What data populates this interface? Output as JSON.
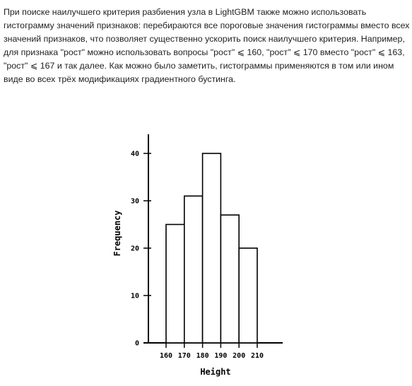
{
  "paragraph": {
    "text": "При поиске наилучшего критерия разбиения узла в LightGBM также можно использовать гистограмму значений признаков: перебираются все пороговые значения гистограммы вместо всех значений признаков, что позволяет существенно ускорить поиск наилучшего критерия. Например, для признака \"рост\" можно использовать вопросы \"рост\" ⩽ 160, \"рост\" ⩽ 170 вместо \"рост\" ⩽ 163, \"рост\" ⩽ 167 и так далее. Как можно было заметить, гистограммы применяются в том или ином виде во всех трёх модификациях градиентного бустинга."
  },
  "chart_data": {
    "type": "bar",
    "bins": [
      {
        "from": 160,
        "to": 170,
        "value": 25
      },
      {
        "from": 170,
        "to": 180,
        "value": 31
      },
      {
        "from": 180,
        "to": 190,
        "value": 40
      },
      {
        "from": 190,
        "to": 200,
        "value": 27
      },
      {
        "from": 200,
        "to": 210,
        "value": 20
      }
    ],
    "x_ticks": [
      "160",
      "170",
      "180",
      "190",
      "200",
      "210"
    ],
    "y_ticks": [
      "0",
      "10",
      "20",
      "30",
      "40"
    ],
    "y_tick_values": [
      0,
      10,
      20,
      30,
      40
    ],
    "xlabel": "Height",
    "ylabel": "Frequency",
    "ylim": [
      0,
      45
    ],
    "grid": false
  }
}
